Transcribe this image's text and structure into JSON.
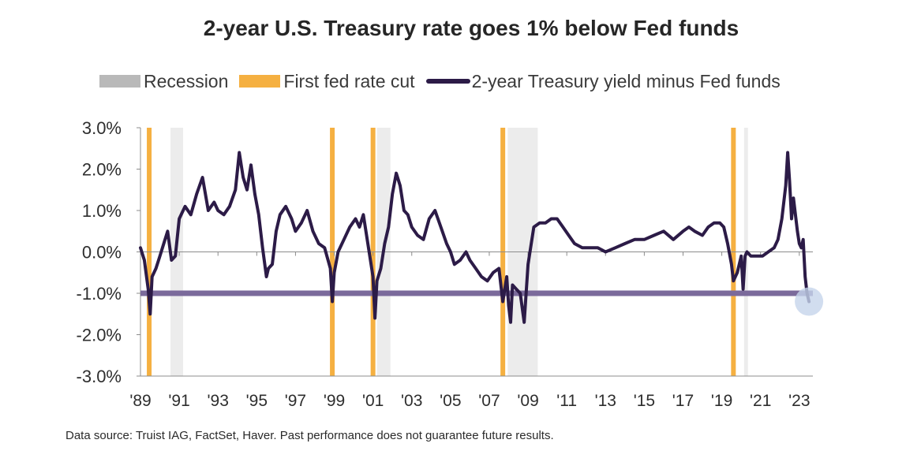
{
  "chart_data": {
    "type": "line",
    "title": "2-year U.S. Treasury rate goes 1% below Fed funds",
    "legend": [
      {
        "name": "Recession",
        "color": "#d9d9d9",
        "kind": "box"
      },
      {
        "name": "First fed rate cut",
        "color": "#f5b041",
        "kind": "box"
      },
      {
        "name": "2-year Treasury yield minus Fed funds",
        "color": "#2c1b47",
        "kind": "line"
      }
    ],
    "y_ticks": [
      "3.0%",
      "2.0%",
      "1.0%",
      "0.0%",
      "-1.0%",
      "-2.0%",
      "-3.0%"
    ],
    "x_ticks": [
      "'89",
      "'91",
      "'93",
      "'95",
      "'97",
      "'99",
      "'01",
      "'03",
      "'05",
      "'07",
      "'09",
      "'11",
      "'13",
      "'15",
      "'17",
      "'19",
      "'21",
      "'23"
    ],
    "xlim": [
      1989.0,
      2023.7
    ],
    "ylim": [
      -3.0,
      3.0
    ],
    "reference_line": -1.0,
    "reference_color": "#7b6a9b",
    "recessions": [
      [
        1990.55,
        1991.2
      ],
      [
        2001.2,
        2001.9
      ],
      [
        2007.95,
        2009.5
      ],
      [
        2020.15,
        2020.35
      ]
    ],
    "rate_cuts": [
      1989.45,
      1998.9,
      2001.0,
      2007.7,
      2019.6
    ],
    "series": [
      {
        "name": "2-year Treasury yield minus Fed funds",
        "color": "#2c1b47",
        "x": [
          1989.0,
          1989.2,
          1989.4,
          1989.5,
          1989.6,
          1989.8,
          1990.0,
          1990.2,
          1990.4,
          1990.6,
          1990.8,
          1991.0,
          1991.3,
          1991.6,
          1991.9,
          1992.2,
          1992.5,
          1992.8,
          1993.0,
          1993.3,
          1993.6,
          1993.9,
          1994.1,
          1994.3,
          1994.5,
          1994.7,
          1994.9,
          1995.1,
          1995.3,
          1995.5,
          1995.6,
          1995.8,
          1996.0,
          1996.2,
          1996.5,
          1996.8,
          1997.0,
          1997.3,
          1997.6,
          1997.9,
          1998.2,
          1998.5,
          1998.8,
          1998.9,
          1999.0,
          1999.2,
          1999.5,
          1999.8,
          2000.1,
          2000.3,
          2000.5,
          2000.7,
          2000.9,
          2001.0,
          2001.1,
          2001.2,
          2001.4,
          2001.6,
          2001.8,
          2002.0,
          2002.2,
          2002.4,
          2002.6,
          2002.8,
          2003.0,
          2003.3,
          2003.6,
          2003.9,
          2004.2,
          2004.5,
          2004.8,
          2005.0,
          2005.2,
          2005.5,
          2005.8,
          2006.0,
          2006.3,
          2006.6,
          2006.9,
          2007.2,
          2007.5,
          2007.7,
          2007.9,
          2008.0,
          2008.1,
          2008.2,
          2008.4,
          2008.6,
          2008.8,
          2009.0,
          2009.3,
          2009.6,
          2009.9,
          2010.2,
          2010.5,
          2010.8,
          2011.1,
          2011.4,
          2011.8,
          2012.2,
          2012.6,
          2013.0,
          2013.5,
          2014.0,
          2014.5,
          2015.0,
          2015.5,
          2016.0,
          2016.5,
          2017.0,
          2017.3,
          2017.6,
          2018.0,
          2018.3,
          2018.6,
          2018.9,
          2019.1,
          2019.3,
          2019.5,
          2019.6,
          2019.8,
          2020.0,
          2020.1,
          2020.2,
          2020.3,
          2020.5,
          2020.8,
          2021.1,
          2021.4,
          2021.7,
          2021.9,
          2022.1,
          2022.3,
          2022.4,
          2022.5,
          2022.6,
          2022.7,
          2022.8,
          2022.9,
          2023.0,
          2023.1,
          2023.2,
          2023.3,
          2023.4,
          2023.5
        ],
        "values": [
          0.1,
          -0.2,
          -0.9,
          -1.5,
          -0.6,
          -0.4,
          -0.1,
          0.2,
          0.5,
          -0.2,
          -0.1,
          0.8,
          1.1,
          0.9,
          1.4,
          1.8,
          1.0,
          1.2,
          1.0,
          0.9,
          1.1,
          1.5,
          2.4,
          1.8,
          1.5,
          2.1,
          1.4,
          0.9,
          0.1,
          -0.6,
          -0.4,
          -0.3,
          0.5,
          0.9,
          1.1,
          0.8,
          0.5,
          0.7,
          1.0,
          0.5,
          0.2,
          0.1,
          -0.4,
          -1.2,
          -0.5,
          0.0,
          0.3,
          0.6,
          0.8,
          0.6,
          0.9,
          0.3,
          -0.3,
          -0.6,
          -1.6,
          -0.7,
          -0.4,
          0.2,
          0.6,
          1.4,
          1.9,
          1.6,
          1.0,
          0.9,
          0.6,
          0.4,
          0.3,
          0.8,
          1.0,
          0.6,
          0.2,
          0.0,
          -0.3,
          -0.2,
          0.0,
          -0.2,
          -0.4,
          -0.6,
          -0.7,
          -0.5,
          -0.4,
          -1.2,
          -0.6,
          -1.3,
          -1.7,
          -0.8,
          -0.9,
          -1.0,
          -1.7,
          -0.3,
          0.6,
          0.7,
          0.7,
          0.8,
          0.8,
          0.6,
          0.4,
          0.2,
          0.1,
          0.1,
          0.1,
          0.0,
          0.1,
          0.2,
          0.3,
          0.3,
          0.4,
          0.5,
          0.3,
          0.5,
          0.6,
          0.5,
          0.4,
          0.6,
          0.7,
          0.7,
          0.6,
          0.2,
          -0.3,
          -0.7,
          -0.5,
          -0.1,
          -0.9,
          -0.1,
          0.0,
          -0.1,
          -0.1,
          -0.1,
          0.0,
          0.1,
          0.3,
          0.8,
          1.6,
          2.4,
          1.7,
          0.8,
          1.3,
          0.9,
          0.5,
          0.2,
          0.1,
          0.3,
          -0.6,
          -1.0,
          -1.2
        ]
      }
    ],
    "current_point_marker": {
      "x": 2023.5,
      "y": -1.2,
      "color": "#c5d4eb"
    }
  },
  "source": "Data source: Truist IAG, FactSet, Haver. Past performance does not guarantee future results."
}
